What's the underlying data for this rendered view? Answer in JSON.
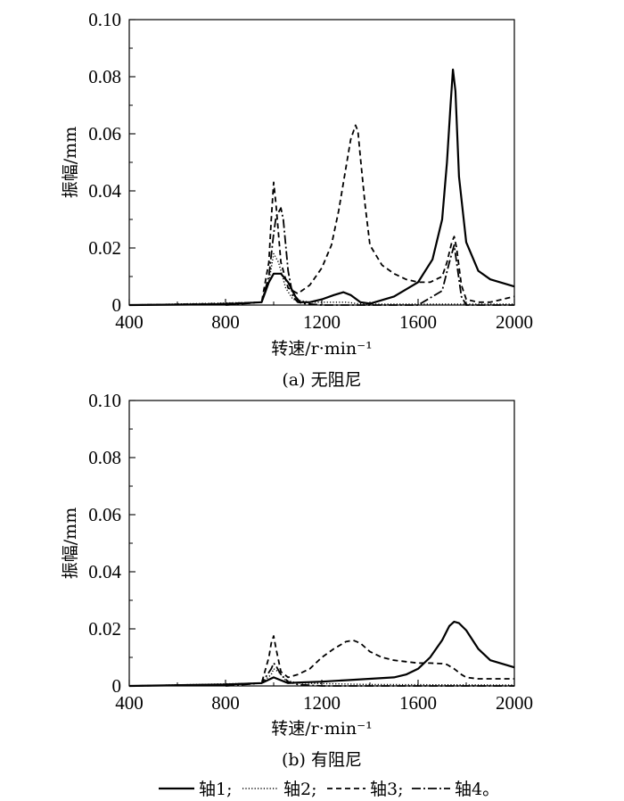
{
  "legend": {
    "items": [
      {
        "label": "轴1;",
        "style": "solid"
      },
      {
        "label": "轴2;",
        "style": "dotted"
      },
      {
        "label": "轴3;",
        "style": "dashed"
      },
      {
        "label": "轴4。",
        "style": "dashdot"
      }
    ]
  },
  "chart_data": [
    {
      "type": "line",
      "caption": "(a) 无阻尼",
      "xlabel": "转速/r·min⁻¹",
      "ylabel": "振幅/mm",
      "xlim": [
        400,
        2000
      ],
      "ylim": [
        0,
        0.1
      ],
      "xticks": [
        400,
        800,
        1200,
        1600,
        2000
      ],
      "yticks": [
        0,
        0.02,
        0.04,
        0.06,
        0.08,
        0.1
      ],
      "ytick_labels": [
        "0",
        "0.02",
        "0.04",
        "0.06",
        "0.08",
        "0.10"
      ],
      "series": [
        {
          "name": "轴1",
          "style": "solid",
          "x": [
            400,
            800,
            950,
            980,
            1000,
            1030,
            1060,
            1090,
            1110,
            1150,
            1200,
            1250,
            1290,
            1320,
            1360,
            1400,
            1500,
            1600,
            1660,
            1700,
            1720,
            1735,
            1745,
            1755,
            1770,
            1800,
            1850,
            1900,
            2000
          ],
          "y": [
            0,
            0.0003,
            0.001,
            0.008,
            0.011,
            0.011,
            0.008,
            0.003,
            0.001,
            0.001,
            0.002,
            0.0035,
            0.0045,
            0.0035,
            0.001,
            0.0005,
            0.003,
            0.008,
            0.016,
            0.03,
            0.05,
            0.07,
            0.0825,
            0.075,
            0.045,
            0.022,
            0.012,
            0.009,
            0.0065
          ]
        },
        {
          "name": "轴2",
          "style": "dotted",
          "x": [
            400,
            950,
            980,
            1000,
            1020,
            1050,
            1080,
            1150,
            1200,
            1300,
            1350,
            1400,
            2000
          ],
          "y": [
            0,
            0.001,
            0.008,
            0.018,
            0.015,
            0.006,
            0.002,
            0.001,
            0.001,
            0.001,
            0.0005,
            0.0003,
            0.0003
          ]
        },
        {
          "name": "轴3",
          "style": "dashed",
          "x": [
            400,
            800,
            950,
            980,
            990,
            1000,
            1010,
            1030,
            1060,
            1100,
            1150,
            1200,
            1240,
            1270,
            1300,
            1320,
            1340,
            1350,
            1360,
            1380,
            1400,
            1450,
            1500,
            1550,
            1600,
            1650,
            1700,
            1720,
            1740,
            1750,
            1760,
            1780,
            1800,
            1850,
            1900,
            2000
          ],
          "y": [
            0,
            0.0005,
            0.001,
            0.015,
            0.03,
            0.043,
            0.035,
            0.015,
            0.006,
            0.004,
            0.007,
            0.013,
            0.021,
            0.033,
            0.048,
            0.058,
            0.063,
            0.061,
            0.052,
            0.035,
            0.021,
            0.014,
            0.011,
            0.009,
            0.008,
            0.008,
            0.01,
            0.015,
            0.022,
            0.024,
            0.02,
            0.007,
            0.002,
            0.001,
            0.001,
            0.003
          ]
        },
        {
          "name": "轴4",
          "style": "dashdot",
          "x": [
            800,
            950,
            980,
            1000,
            1010,
            1030,
            1040,
            1060,
            1080,
            1100,
            1130,
            1200,
            1400,
            1600,
            1700,
            1730,
            1750,
            1760,
            1780,
            1800,
            2000
          ],
          "y": [
            0,
            0.001,
            0.01,
            0.025,
            0.031,
            0.034,
            0.03,
            0.012,
            0.003,
            0.001,
            0.0005,
            0,
            0,
            0,
            0.005,
            0.015,
            0.021,
            0.015,
            0.003,
            0,
            0
          ]
        }
      ]
    },
    {
      "type": "line",
      "caption": "(b) 有阻尼",
      "xlabel": "转速/r·min⁻¹",
      "ylabel": "振幅/mm",
      "xlim": [
        400,
        2000
      ],
      "ylim": [
        0,
        0.1
      ],
      "xticks": [
        400,
        800,
        1200,
        1600,
        2000
      ],
      "yticks": [
        0,
        0.02,
        0.04,
        0.06,
        0.08,
        0.1
      ],
      "ytick_labels": [
        "0",
        "0.02",
        "0.04",
        "0.06",
        "0.08",
        "0.10"
      ],
      "series": [
        {
          "name": "轴1",
          "style": "solid",
          "x": [
            400,
            800,
            950,
            1000,
            1030,
            1060,
            1100,
            1200,
            1300,
            1400,
            1500,
            1550,
            1600,
            1650,
            1700,
            1730,
            1750,
            1770,
            1800,
            1850,
            1900,
            2000
          ],
          "y": [
            0,
            0.0005,
            0.001,
            0.003,
            0.002,
            0.001,
            0.0012,
            0.0015,
            0.002,
            0.0025,
            0.003,
            0.004,
            0.006,
            0.01,
            0.016,
            0.021,
            0.0225,
            0.022,
            0.0195,
            0.013,
            0.009,
            0.0065
          ]
        },
        {
          "name": "轴2",
          "style": "dotted",
          "x": [
            400,
            950,
            990,
            1000,
            1020,
            1050,
            1100,
            1400,
            2000
          ],
          "y": [
            0,
            0.001,
            0.004,
            0.006,
            0.005,
            0.002,
            0.001,
            0.0005,
            0.0003
          ]
        },
        {
          "name": "轴3",
          "style": "dashed",
          "x": [
            400,
            800,
            950,
            980,
            990,
            1000,
            1010,
            1030,
            1060,
            1100,
            1150,
            1200,
            1250,
            1300,
            1330,
            1360,
            1400,
            1450,
            1500,
            1550,
            1600,
            1650,
            1700,
            1720,
            1750,
            1780,
            1800,
            1850,
            2000
          ],
          "y": [
            0,
            0.0005,
            0.001,
            0.01,
            0.015,
            0.0175,
            0.013,
            0.005,
            0.003,
            0.004,
            0.006,
            0.01,
            0.013,
            0.0155,
            0.016,
            0.015,
            0.012,
            0.01,
            0.009,
            0.0085,
            0.008,
            0.008,
            0.0078,
            0.0075,
            0.006,
            0.004,
            0.003,
            0.0025,
            0.0025
          ]
        },
        {
          "name": "轴4",
          "style": "dashdot",
          "x": [
            800,
            950,
            990,
            1000,
            1010,
            1030,
            1060,
            1100,
            1200,
            2000
          ],
          "y": [
            0,
            0.001,
            0.006,
            0.008,
            0.007,
            0.004,
            0.0015,
            0.0005,
            0,
            0
          ]
        }
      ]
    }
  ]
}
